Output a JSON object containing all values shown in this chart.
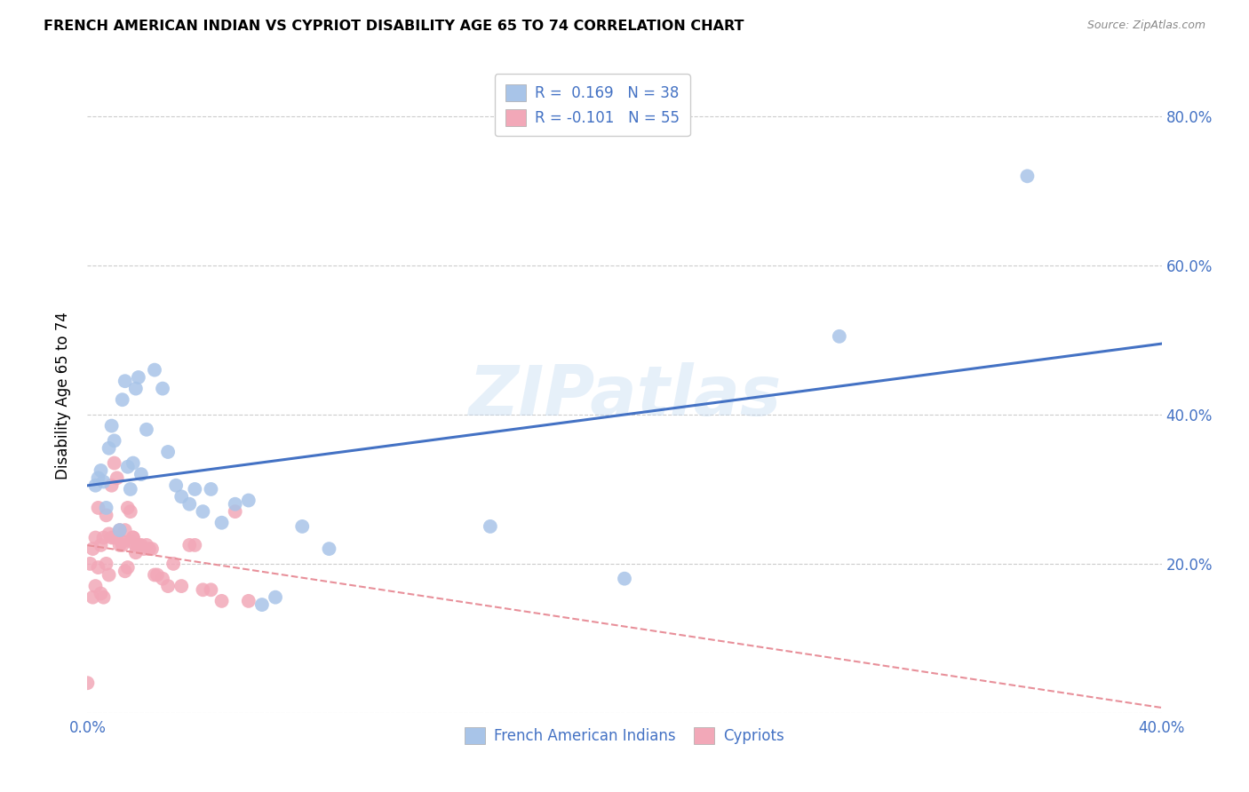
{
  "title": "FRENCH AMERICAN INDIAN VS CYPRIOT DISABILITY AGE 65 TO 74 CORRELATION CHART",
  "source": "Source: ZipAtlas.com",
  "ylabel": "Disability Age 65 to 74",
  "xlim": [
    0.0,
    0.4
  ],
  "ylim": [
    0.0,
    0.85
  ],
  "x_ticks": [
    0.0,
    0.05,
    0.1,
    0.15,
    0.2,
    0.25,
    0.3,
    0.35,
    0.4
  ],
  "y_ticks": [
    0.0,
    0.2,
    0.4,
    0.6,
    0.8
  ],
  "blue_R": 0.169,
  "blue_N": 38,
  "pink_R": -0.101,
  "pink_N": 55,
  "blue_color": "#a8c4e8",
  "pink_color": "#f2a8b8",
  "blue_line_color": "#4472c4",
  "pink_line_color": "#e8909a",
  "watermark": "ZIPatlas",
  "blue_x": [
    0.003,
    0.004,
    0.005,
    0.006,
    0.007,
    0.008,
    0.009,
    0.01,
    0.012,
    0.013,
    0.014,
    0.015,
    0.016,
    0.017,
    0.018,
    0.019,
    0.02,
    0.022,
    0.025,
    0.028,
    0.03,
    0.033,
    0.035,
    0.038,
    0.04,
    0.043,
    0.046,
    0.05,
    0.055,
    0.06,
    0.065,
    0.07,
    0.08,
    0.09,
    0.15,
    0.2,
    0.28,
    0.35
  ],
  "blue_y": [
    0.305,
    0.315,
    0.325,
    0.31,
    0.275,
    0.355,
    0.385,
    0.365,
    0.245,
    0.42,
    0.445,
    0.33,
    0.3,
    0.335,
    0.435,
    0.45,
    0.32,
    0.38,
    0.46,
    0.435,
    0.35,
    0.305,
    0.29,
    0.28,
    0.3,
    0.27,
    0.3,
    0.255,
    0.28,
    0.285,
    0.145,
    0.155,
    0.25,
    0.22,
    0.25,
    0.18,
    0.505,
    0.72
  ],
  "pink_x": [
    0.0,
    0.001,
    0.002,
    0.002,
    0.003,
    0.003,
    0.004,
    0.004,
    0.005,
    0.005,
    0.006,
    0.006,
    0.007,
    0.007,
    0.008,
    0.008,
    0.009,
    0.009,
    0.01,
    0.01,
    0.011,
    0.011,
    0.012,
    0.012,
    0.013,
    0.013,
    0.014,
    0.014,
    0.015,
    0.015,
    0.016,
    0.016,
    0.017,
    0.017,
    0.018,
    0.018,
    0.019,
    0.02,
    0.021,
    0.022,
    0.023,
    0.024,
    0.025,
    0.026,
    0.028,
    0.03,
    0.032,
    0.035,
    0.038,
    0.04,
    0.043,
    0.046,
    0.05,
    0.055,
    0.06
  ],
  "pink_y": [
    0.04,
    0.2,
    0.155,
    0.22,
    0.235,
    0.17,
    0.275,
    0.195,
    0.16,
    0.225,
    0.155,
    0.235,
    0.2,
    0.265,
    0.185,
    0.24,
    0.235,
    0.305,
    0.235,
    0.335,
    0.235,
    0.315,
    0.245,
    0.225,
    0.23,
    0.225,
    0.245,
    0.19,
    0.275,
    0.195,
    0.27,
    0.23,
    0.235,
    0.235,
    0.225,
    0.215,
    0.225,
    0.225,
    0.22,
    0.225,
    0.22,
    0.22,
    0.185,
    0.185,
    0.18,
    0.17,
    0.2,
    0.17,
    0.225,
    0.225,
    0.165,
    0.165,
    0.15,
    0.27,
    0.15
  ]
}
